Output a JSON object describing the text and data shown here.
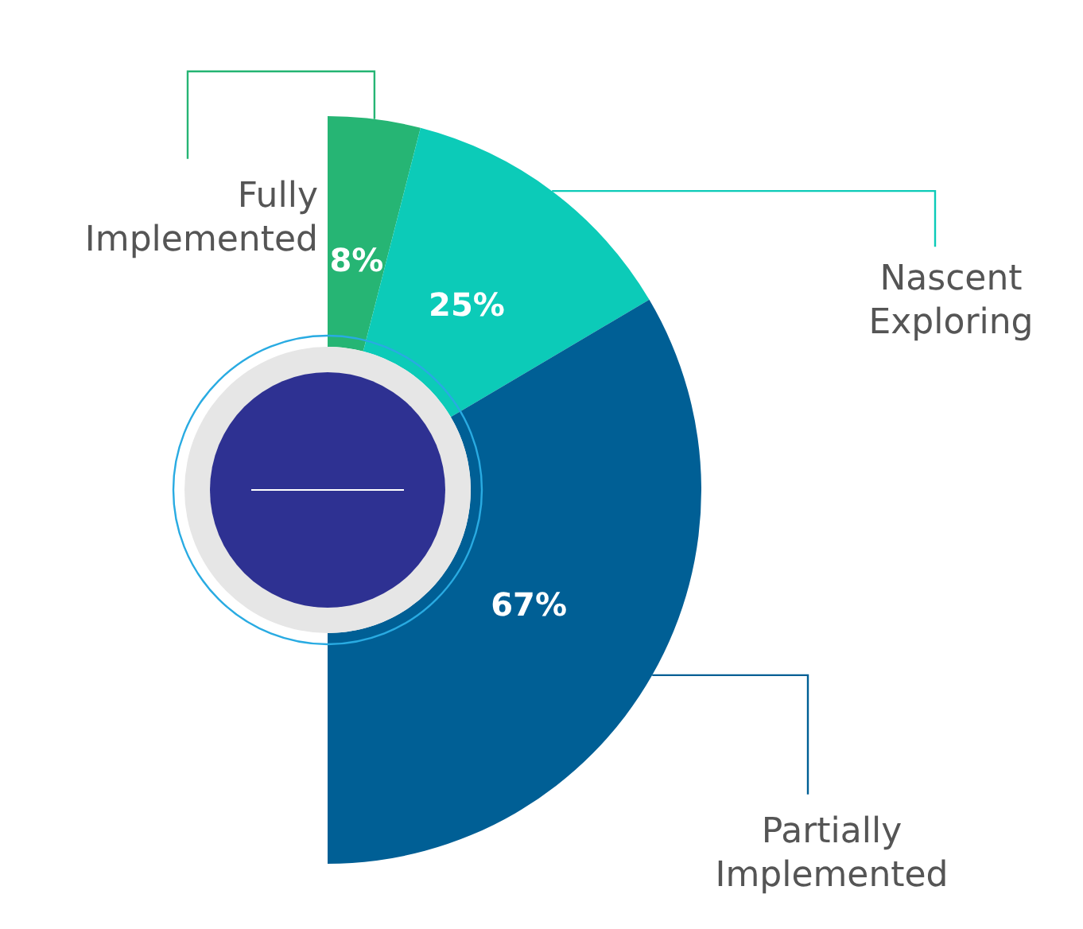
{
  "chart_data": {
    "type": "donut",
    "categories": [
      "Fully Implemented",
      "Nascent Exploring",
      "Partially Implemented"
    ],
    "values": [
      8,
      25,
      67
    ],
    "value_labels": [
      "8%",
      "25%",
      "67%"
    ],
    "colors": [
      "#26b574",
      "#0ccbb8",
      "#005f95"
    ]
  }
}
